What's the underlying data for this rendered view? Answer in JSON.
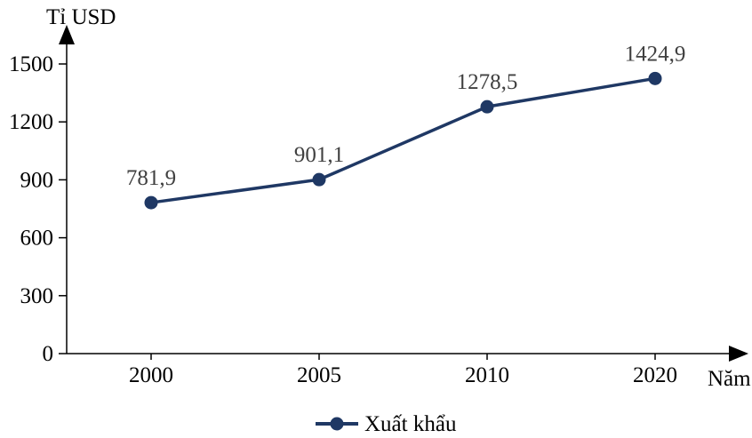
{
  "chart_data": {
    "type": "line",
    "title": "",
    "y_axis_label": "Tỉ USD",
    "x_axis_label": "Năm",
    "categories": [
      "2000",
      "2005",
      "2010",
      "2020"
    ],
    "series": [
      {
        "name": "Xuất khẩu",
        "values": [
          781.9,
          901.1,
          1278.5,
          1424.9
        ],
        "point_labels": [
          "781,9",
          "901,1",
          "1278,5",
          "1424,9"
        ],
        "color": "#1f3864",
        "marker": "filled-circle"
      }
    ],
    "y_ticks": [
      0,
      300,
      600,
      900,
      1200,
      1500
    ],
    "ylim": [
      0,
      1500
    ],
    "grid": false,
    "legend_position": "bottom",
    "axis_color": "#000000",
    "tick_label_color": "#000000",
    "point_label_color": "#404040"
  }
}
